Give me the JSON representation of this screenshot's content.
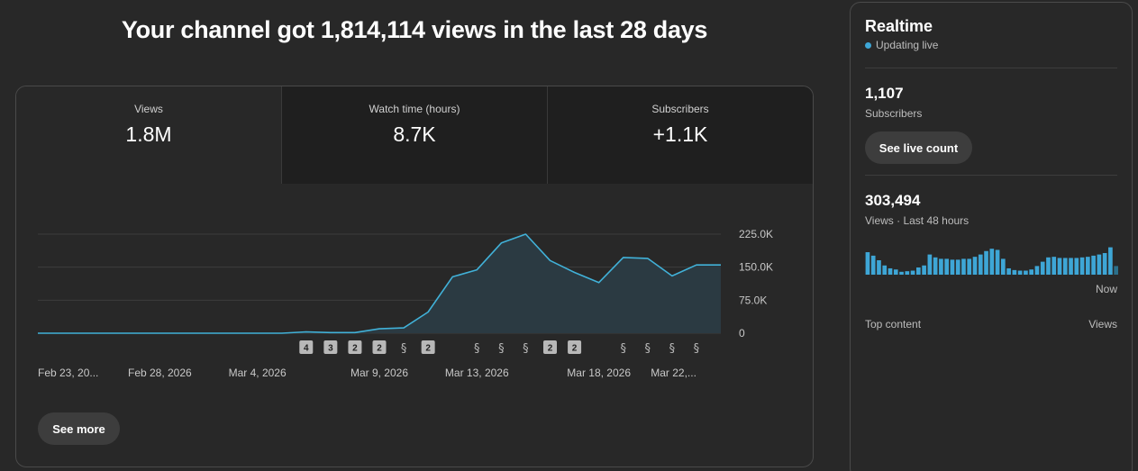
{
  "headline": "Your channel got 1,814,114 views in the last 28 days",
  "tabs": [
    {
      "label": "Views",
      "value": "1.8M"
    },
    {
      "label": "Watch time (hours)",
      "value": "8.7K"
    },
    {
      "label": "Subscribers",
      "value": "+1.1K"
    }
  ],
  "see_more_label": "See more",
  "chart_data": {
    "type": "area",
    "title": "",
    "xlabel": "",
    "ylabel": "",
    "ylim": [
      0,
      225000
    ],
    "yticks": [
      {
        "value": 0,
        "label": "0"
      },
      {
        "value": 75000,
        "label": "75.0K"
      },
      {
        "value": 150000,
        "label": "150.0K"
      },
      {
        "value": 225000,
        "label": "225.0K"
      }
    ],
    "x": [
      "Feb 23",
      "Feb 24",
      "Feb 25",
      "Feb 26",
      "Feb 27",
      "Feb 28",
      "Mar 1",
      "Mar 2",
      "Mar 3",
      "Mar 4",
      "Mar 5",
      "Mar 6",
      "Mar 7",
      "Mar 8",
      "Mar 9",
      "Mar 10",
      "Mar 11",
      "Mar 12",
      "Mar 13",
      "Mar 14",
      "Mar 15",
      "Mar 16",
      "Mar 17",
      "Mar 18",
      "Mar 19",
      "Mar 20",
      "Mar 21",
      "Mar 22",
      "Mar 23"
    ],
    "xtick_labels": [
      {
        "index": 0,
        "label": "Feb 23, 20..."
      },
      {
        "index": 5,
        "label": "Feb 28, 2026"
      },
      {
        "index": 9,
        "label": "Mar 4, 2026"
      },
      {
        "index": 14,
        "label": "Mar 9, 2026"
      },
      {
        "index": 18,
        "label": "Mar 13, 2026"
      },
      {
        "index": 23,
        "label": "Mar 18, 2026"
      },
      {
        "index": 27,
        "label": "Mar 22,..."
      }
    ],
    "series": [
      {
        "values": [
          0,
          0,
          0,
          0,
          0,
          0,
          0,
          0,
          0,
          0,
          0,
          3000,
          1500,
          1500,
          10000,
          12000,
          48000,
          128000,
          144000,
          205000,
          225000,
          165000,
          138000,
          115000,
          172000,
          170000,
          130000,
          155000,
          155000
        ]
      }
    ],
    "grid": true,
    "upload_markers": [
      {
        "index": 11,
        "kind": "count",
        "label": "4"
      },
      {
        "index": 12,
        "kind": "count",
        "label": "3"
      },
      {
        "index": 13,
        "kind": "count",
        "label": "2"
      },
      {
        "index": 14,
        "kind": "count",
        "label": "2"
      },
      {
        "index": 15,
        "kind": "short"
      },
      {
        "index": 16,
        "kind": "count",
        "label": "2"
      },
      {
        "index": 18,
        "kind": "short"
      },
      {
        "index": 19,
        "kind": "short"
      },
      {
        "index": 20,
        "kind": "short"
      },
      {
        "index": 21,
        "kind": "count",
        "label": "2"
      },
      {
        "index": 22,
        "kind": "count",
        "label": "2"
      },
      {
        "index": 24,
        "kind": "short"
      },
      {
        "index": 25,
        "kind": "short"
      },
      {
        "index": 26,
        "kind": "short"
      },
      {
        "index": 27,
        "kind": "short"
      }
    ],
    "line_color": "#41b1d8",
    "fill_color": "#2b3a42"
  },
  "realtime": {
    "title": "Realtime",
    "status": "Updating live",
    "subscribers_value": "1,107",
    "subscribers_label": "Subscribers",
    "live_count_label": "See live count",
    "views_value": "303,494",
    "views_label": "Views · Last 48 hours",
    "now_label": "Now",
    "top_content_label": "Top content",
    "views_col_label": "Views",
    "hourly_bars": [
      0.78,
      0.66,
      0.5,
      0.32,
      0.22,
      0.18,
      0.1,
      0.12,
      0.14,
      0.25,
      0.32,
      0.7,
      0.6,
      0.55,
      0.55,
      0.52,
      0.52,
      0.55,
      0.55,
      0.62,
      0.7,
      0.82,
      0.9,
      0.86,
      0.55,
      0.22,
      0.16,
      0.14,
      0.14,
      0.18,
      0.3,
      0.45,
      0.6,
      0.62,
      0.58,
      0.58,
      0.58,
      0.58,
      0.6,
      0.62,
      0.66,
      0.7,
      0.75,
      0.95,
      0.3
    ],
    "accent": "#3ea6d6"
  }
}
